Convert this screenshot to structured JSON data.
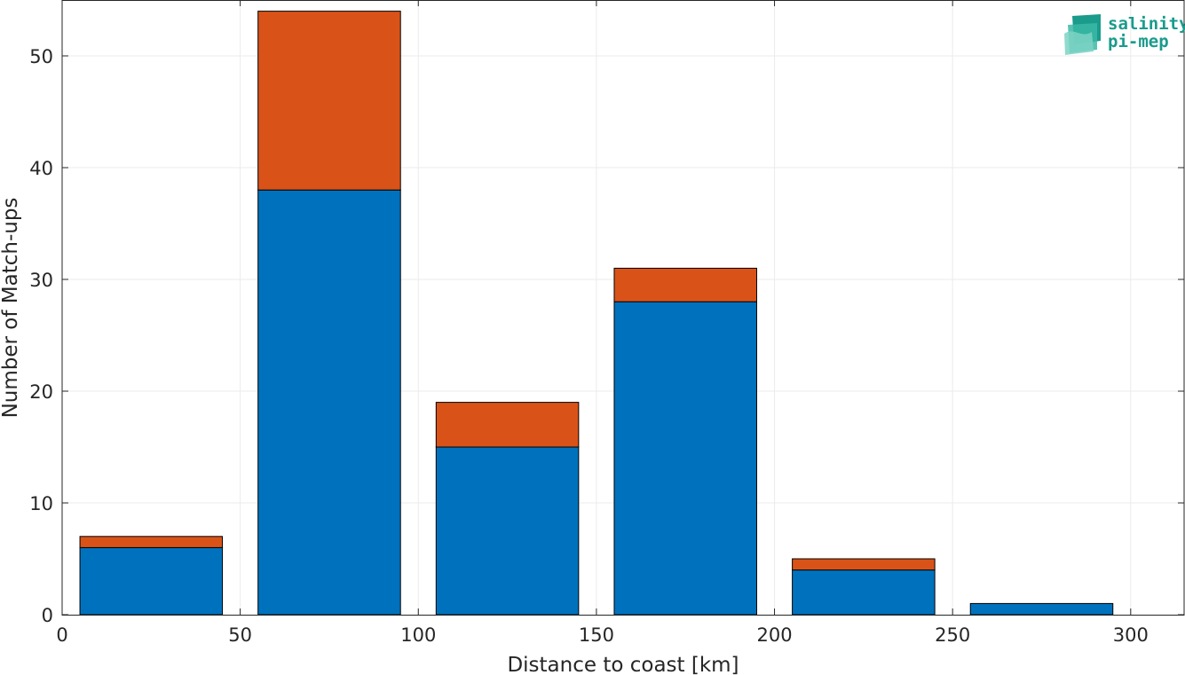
{
  "chart_data": {
    "type": "bar",
    "stacked": true,
    "x": [
      25,
      75,
      125,
      175,
      225,
      275
    ],
    "bin_width": 40,
    "series": [
      {
        "values": [
          6,
          38,
          15,
          28,
          4,
          1
        ],
        "color": "#0072BD"
      },
      {
        "values": [
          1,
          16,
          4,
          3,
          1,
          0
        ],
        "color": "#D95319"
      }
    ],
    "xlabel": "Distance to coast [km]",
    "ylabel": "Number of Match-ups",
    "xlim": [
      0,
      315
    ],
    "ylim": [
      0,
      55
    ],
    "xticks": [
      0,
      50,
      100,
      150,
      200,
      250,
      300
    ],
    "yticks": [
      0,
      10,
      20,
      30,
      40,
      50
    ],
    "grid": true
  },
  "logo": {
    "line1": "salinity",
    "line2": "pi-mep"
  }
}
